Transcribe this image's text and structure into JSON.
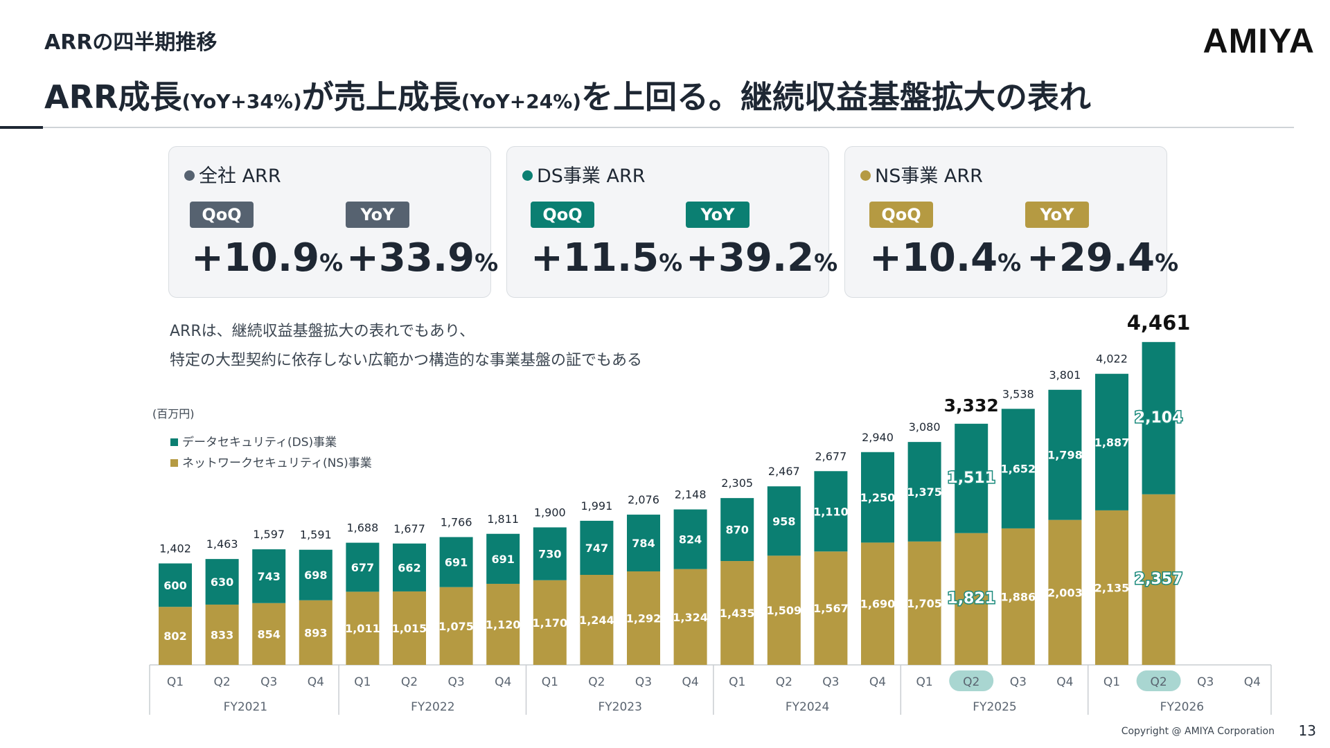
{
  "header": {
    "section_label": "ARRの四半期推移",
    "headline_parts": [
      "ARR成長",
      "(YoY+34%)",
      "が売上成長",
      "(YoY+24%)",
      "を上回る。継続収益基盤拡大の表れ"
    ],
    "logo": "AMIYA"
  },
  "kpis": [
    {
      "title": "全社 ARR",
      "color": "#566270",
      "qoq_label": "QoQ",
      "qoq_value": "+10.9",
      "yoy_label": "YoY",
      "yoy_value": "+33.9",
      "unit": "%"
    },
    {
      "title": "DS事業 ARR",
      "color": "#0b7f72",
      "qoq_label": "QoQ",
      "qoq_value": "+11.5",
      "yoy_label": "YoY",
      "yoy_value": "+39.2",
      "unit": "%"
    },
    {
      "title": "NS事業 ARR",
      "color": "#b59a42",
      "qoq_label": "QoQ",
      "qoq_value": "+10.4",
      "yoy_label": "YoY",
      "yoy_value": "+29.4",
      "unit": "%"
    }
  ],
  "notes": [
    "ARRは、継続収益基盤拡大の表れでもあり、",
    "特定の大型契約に依存しない広範かつ構造的な事業基盤の証でもある"
  ],
  "chart_data": {
    "type": "bar",
    "stacked": true,
    "unit_label": "(百万円)",
    "categories": [
      "Q1",
      "Q2",
      "Q3",
      "Q4",
      "Q1",
      "Q2",
      "Q3",
      "Q4",
      "Q1",
      "Q2",
      "Q3",
      "Q4",
      "Q1",
      "Q2",
      "Q3",
      "Q4",
      "Q1",
      "Q2",
      "Q3",
      "Q4",
      "Q1",
      "Q2",
      "Q3",
      "Q4"
    ],
    "fiscal_years": [
      "FY2021",
      "FY2022",
      "FY2023",
      "FY2024",
      "FY2025",
      "FY2026"
    ],
    "series": [
      {
        "name": "ネットワークセキュリティ(NS)事業",
        "color": "#b59a42",
        "values": [
          802,
          833,
          854,
          893,
          1011,
          1015,
          1075,
          1120,
          1170,
          1244,
          1292,
          1324,
          1435,
          1509,
          1567,
          1690,
          1705,
          1821,
          1886,
          2003,
          2135,
          2357,
          null,
          null
        ],
        "labels": [
          "802",
          "833",
          "854",
          "893",
          "1,011",
          "1,015",
          "1,075",
          "1,120",
          "1,170",
          "1,244",
          "1,292",
          "1,324",
          "1,435",
          "1,509",
          "1,567",
          "1,690",
          "1,705",
          "1,821",
          "1,886",
          "2,003",
          "2,135",
          "2,357",
          "",
          ""
        ]
      },
      {
        "name": "データセキュリティ(DS)事業",
        "color": "#0b7f72",
        "values": [
          600,
          630,
          743,
          698,
          677,
          662,
          691,
          691,
          730,
          747,
          784,
          824,
          870,
          958,
          1110,
          1250,
          1375,
          1511,
          1652,
          1798,
          1887,
          2104,
          null,
          null
        ],
        "labels": [
          "600",
          "630",
          "743",
          "698",
          "677",
          "662",
          "691",
          "691",
          "730",
          "747",
          "784",
          "824",
          "870",
          "958",
          "1,110",
          "1,250",
          "1,375",
          "1,511",
          "1,652",
          "1,798",
          "1,887",
          "2,104",
          "",
          ""
        ]
      }
    ],
    "totals": [
      1402,
      1463,
      1597,
      1591,
      1688,
      1677,
      1766,
      1811,
      1900,
      1991,
      2076,
      2148,
      2305,
      2467,
      2677,
      2940,
      3080,
      3332,
      3538,
      3801,
      4022,
      4461,
      null,
      null
    ],
    "total_labels": [
      "1,402",
      "1,463",
      "1,597",
      "1,591",
      "1,688",
      "1,677",
      "1,766",
      "1,811",
      "1,900",
      "1,991",
      "2,076",
      "2,148",
      "2,305",
      "2,467",
      "2,677",
      "2,940",
      "3,080",
      "3,332",
      "3,538",
      "3,801",
      "4,022",
      "4,461",
      "",
      ""
    ],
    "highlighted_indices": [
      17,
      21
    ],
    "highlight_color": "#a9d6d1",
    "ylim": [
      0,
      4500
    ],
    "grid": false
  },
  "footer": {
    "copyright": "Copyright @ AMIYA Corporation",
    "page": "13"
  }
}
